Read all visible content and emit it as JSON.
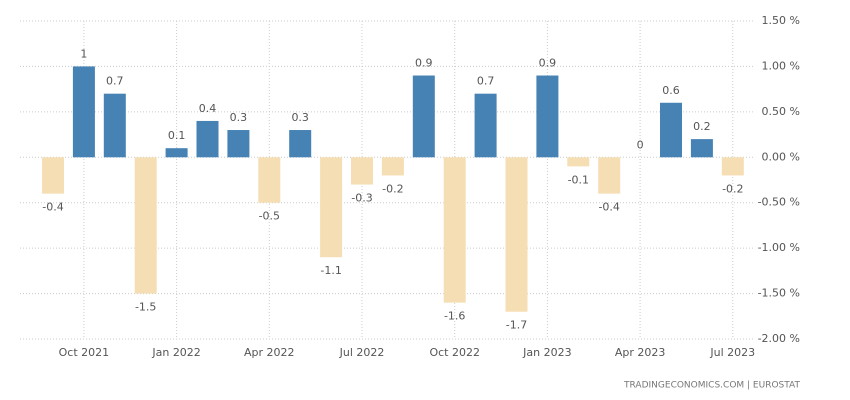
{
  "chart_data": {
    "type": "bar",
    "categories": [
      null,
      "Oct 2021",
      null,
      null,
      "Jan 2022",
      null,
      null,
      "Apr 2022",
      null,
      null,
      "Jul 2022",
      null,
      null,
      "Oct 2022",
      null,
      null,
      "Jan 2023",
      null,
      null,
      "Apr 2023",
      null,
      null,
      "Jul 2023"
    ],
    "values": [
      -0.4,
      1,
      0.7,
      -1.5,
      0.1,
      0.4,
      0.3,
      -0.5,
      0.3,
      -1.1,
      -0.3,
      -0.2,
      0.9,
      -1.6,
      0.7,
      -1.7,
      0.9,
      -0.1,
      -0.4,
      0,
      0.6,
      0.2,
      -0.2
    ],
    "positive_color": "#4682b4",
    "negative_color": "#f5deb3",
    "ylim": [
      -2,
      1.5
    ],
    "yticks": [
      {
        "value": -2,
        "label": "-2.00 %"
      },
      {
        "value": -1.5,
        "label": "-1.50 %"
      },
      {
        "value": -1,
        "label": "-1.00 %"
      },
      {
        "value": -0.5,
        "label": "-0.50 %"
      },
      {
        "value": 0,
        "label": "0.00 %"
      },
      {
        "value": 0.5,
        "label": "0.50 %"
      },
      {
        "value": 1,
        "label": "1.00 %"
      },
      {
        "value": 1.5,
        "label": "1.50 %"
      }
    ],
    "grid": true,
    "source": "TRADINGECONOMICS.COM  |  EUROSTAT"
  }
}
